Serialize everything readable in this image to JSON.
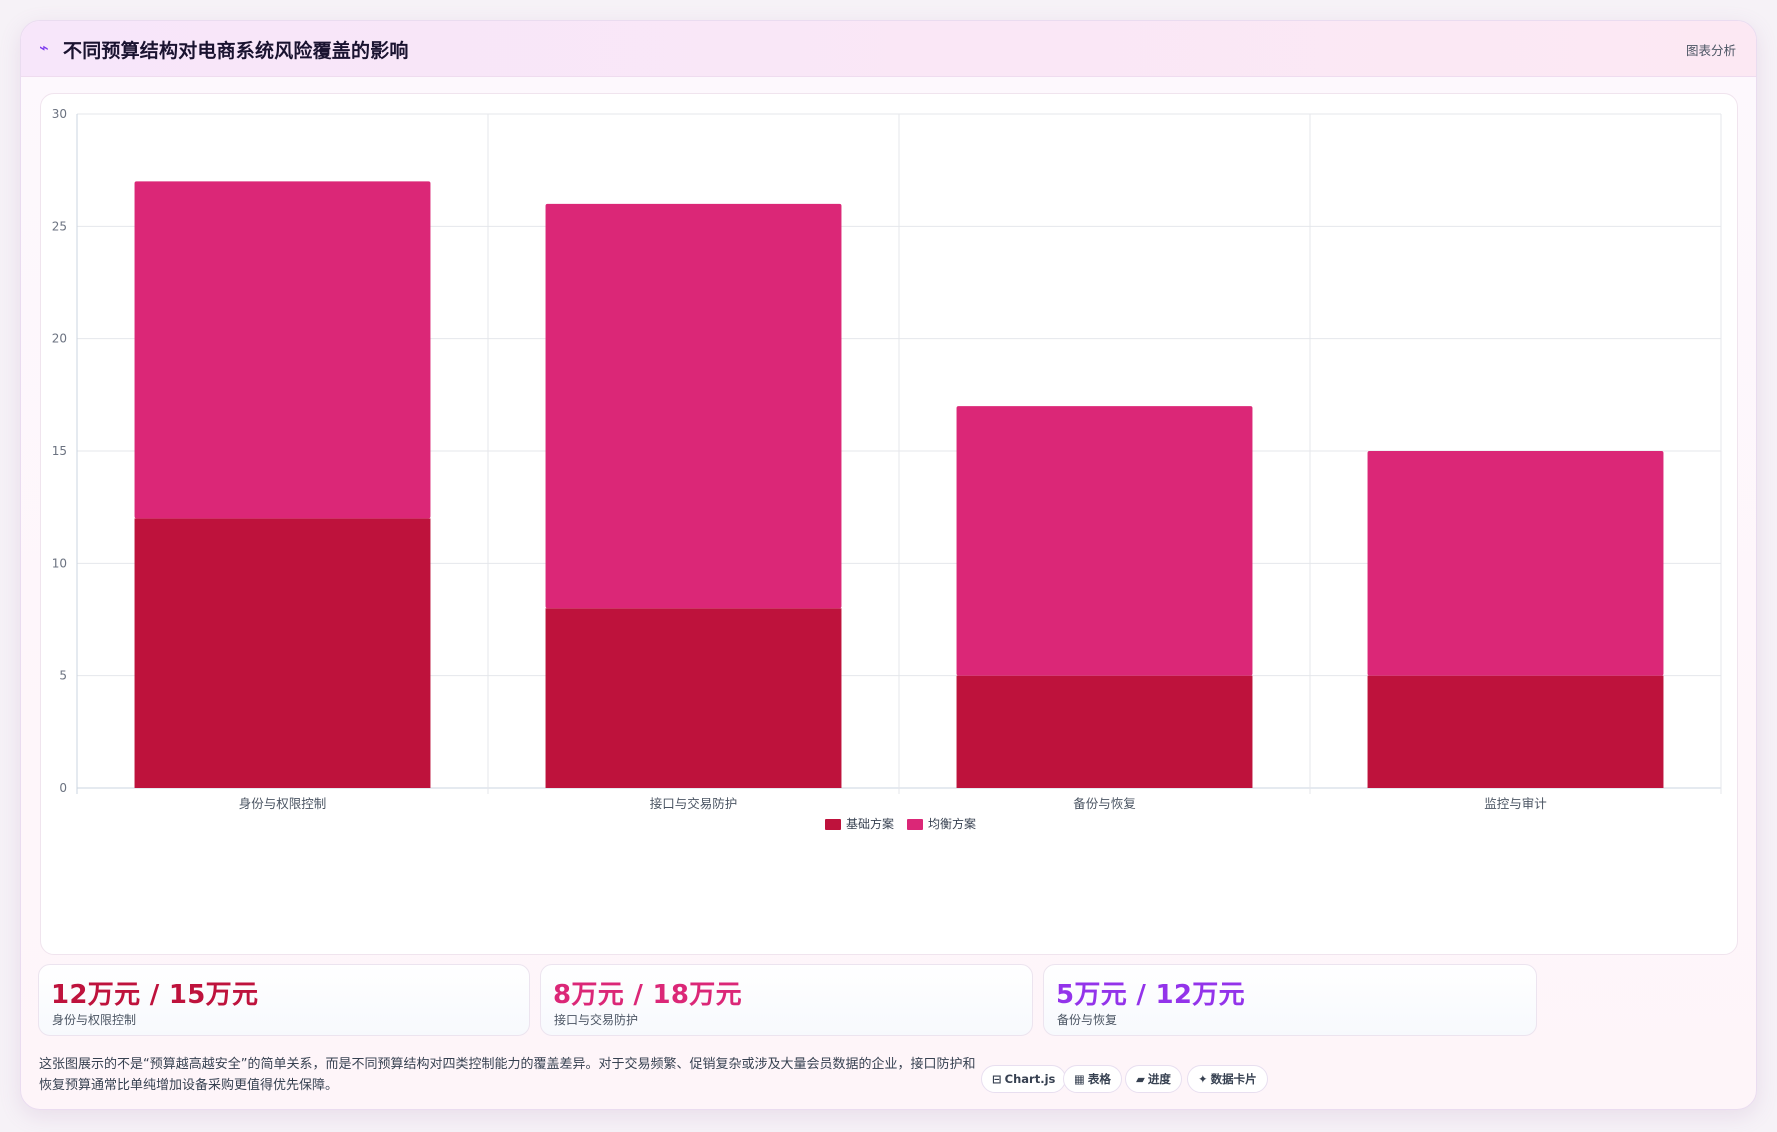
{
  "header": {
    "icon": "sparkline-icon",
    "title": "不同预算结构对电商系统风险覆盖的影响",
    "action": "图表分析"
  },
  "chart_data": {
    "type": "bar",
    "stacked": true,
    "categories": [
      "身份与权限控制",
      "接口与交易防护",
      "备份与恢复",
      "监控与审计"
    ],
    "series": [
      {
        "name": "基础方案",
        "values": [
          12,
          8,
          5,
          5
        ],
        "color": "#be123c"
      },
      {
        "name": "均衡方案",
        "values": [
          15,
          18,
          12,
          10
        ],
        "color": "#db2777"
      }
    ],
    "ylim": [
      0,
      30
    ],
    "yticks": [
      0,
      5,
      10,
      15,
      20,
      25,
      30
    ],
    "grid": true,
    "legend": "bottom"
  },
  "stats": [
    {
      "value": "12万元 / 15万元",
      "label": "身份与权限控制",
      "color": "#be123c"
    },
    {
      "value": "8万元 / 18万元",
      "label": "接口与交易防护",
      "color": "#db2777"
    },
    {
      "value": "5万元 / 12万元",
      "label": "备份与恢复",
      "color": "#9333ea"
    }
  ],
  "note": "这张图展示的不是“预算越高越安全”的简单关系，而是不同预算结构对四类控制能力的覆盖差异。对于交易频繁、促销复杂或涉及大量会员数据的企业，接口防护和恢复预算通常比单纯增加设备采购更值得优先保障。",
  "tags": [
    {
      "icon": "⊟",
      "label": "Chart.js"
    },
    {
      "icon": "▦",
      "label": "表格"
    },
    {
      "icon": "▰",
      "label": "进度"
    },
    {
      "icon": "✦",
      "label": "数据卡片"
    }
  ]
}
